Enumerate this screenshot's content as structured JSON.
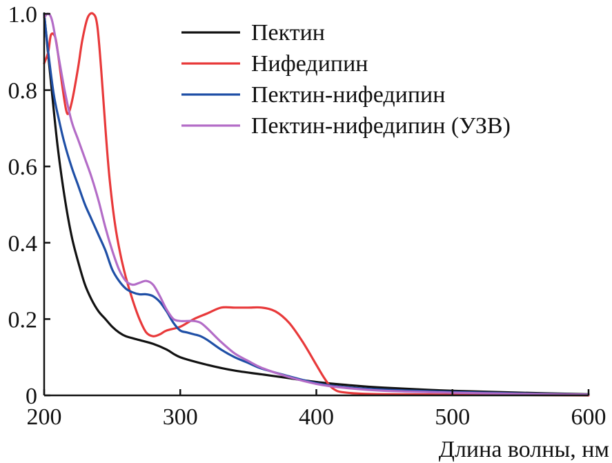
{
  "chart_data": {
    "type": "line",
    "title": "",
    "xlabel": "Длина волны, нм",
    "ylabel": "",
    "xlim": [
      200,
      600
    ],
    "ylim": [
      0,
      1.0
    ],
    "x_ticks": [
      200,
      300,
      400,
      500,
      600
    ],
    "x_tick_labels": [
      "200",
      "300",
      "400",
      "500",
      "600"
    ],
    "y_ticks": [
      0,
      0.2,
      0.4,
      0.6,
      0.8,
      1.0
    ],
    "y_tick_labels": [
      "0",
      "0.2",
      "0.4",
      "0.6",
      "0.8",
      "1.0"
    ],
    "grid": false,
    "legend_position": "top-right",
    "series": [
      {
        "name": "Пектин",
        "color": "#111111",
        "points": [
          [
            200,
            1.0
          ],
          [
            205,
            0.82
          ],
          [
            210,
            0.65
          ],
          [
            215,
            0.52
          ],
          [
            220,
            0.42
          ],
          [
            225,
            0.35
          ],
          [
            230,
            0.29
          ],
          [
            235,
            0.25
          ],
          [
            240,
            0.22
          ],
          [
            245,
            0.2
          ],
          [
            250,
            0.18
          ],
          [
            255,
            0.165
          ],
          [
            260,
            0.155
          ],
          [
            270,
            0.145
          ],
          [
            280,
            0.135
          ],
          [
            290,
            0.12
          ],
          [
            300,
            0.1
          ],
          [
            320,
            0.08
          ],
          [
            340,
            0.065
          ],
          [
            360,
            0.055
          ],
          [
            380,
            0.045
          ],
          [
            400,
            0.035
          ],
          [
            420,
            0.028
          ],
          [
            450,
            0.02
          ],
          [
            500,
            0.012
          ],
          [
            550,
            0.007
          ],
          [
            600,
            0.003
          ]
        ]
      },
      {
        "name": "Нифедипин",
        "color": "#e8393a",
        "points": [
          [
            200,
            0.87
          ],
          [
            203,
            0.9
          ],
          [
            205,
            0.945
          ],
          [
            208,
            0.94
          ],
          [
            210,
            0.9
          ],
          [
            213,
            0.82
          ],
          [
            216,
            0.75
          ],
          [
            218,
            0.74
          ],
          [
            221,
            0.78
          ],
          [
            225,
            0.86
          ],
          [
            228,
            0.93
          ],
          [
            232,
            0.99
          ],
          [
            236,
            1.0
          ],
          [
            239,
            0.97
          ],
          [
            242,
            0.85
          ],
          [
            245,
            0.7
          ],
          [
            248,
            0.57
          ],
          [
            252,
            0.45
          ],
          [
            256,
            0.37
          ],
          [
            260,
            0.31
          ],
          [
            265,
            0.25
          ],
          [
            270,
            0.2
          ],
          [
            275,
            0.165
          ],
          [
            280,
            0.155
          ],
          [
            285,
            0.16
          ],
          [
            290,
            0.17
          ],
          [
            300,
            0.18
          ],
          [
            310,
            0.2
          ],
          [
            320,
            0.215
          ],
          [
            330,
            0.23
          ],
          [
            340,
            0.23
          ],
          [
            350,
            0.23
          ],
          [
            360,
            0.23
          ],
          [
            370,
            0.22
          ],
          [
            380,
            0.19
          ],
          [
            390,
            0.14
          ],
          [
            400,
            0.08
          ],
          [
            405,
            0.05
          ],
          [
            410,
            0.025
          ],
          [
            415,
            0.012
          ],
          [
            420,
            0.008
          ],
          [
            430,
            0.005
          ],
          [
            450,
            0.003
          ],
          [
            500,
            0.002
          ],
          [
            550,
            0.001
          ],
          [
            600,
            0.0
          ]
        ]
      },
      {
        "name": "Пектин-нифедипин",
        "color": "#1f4fa6",
        "points": [
          [
            200,
            1.0
          ],
          [
            203,
            0.9
          ],
          [
            207,
            0.79
          ],
          [
            211,
            0.72
          ],
          [
            215,
            0.66
          ],
          [
            220,
            0.6
          ],
          [
            225,
            0.55
          ],
          [
            230,
            0.5
          ],
          [
            235,
            0.46
          ],
          [
            240,
            0.42
          ],
          [
            245,
            0.38
          ],
          [
            250,
            0.33
          ],
          [
            255,
            0.3
          ],
          [
            260,
            0.28
          ],
          [
            265,
            0.27
          ],
          [
            270,
            0.265
          ],
          [
            275,
            0.265
          ],
          [
            280,
            0.26
          ],
          [
            285,
            0.245
          ],
          [
            290,
            0.22
          ],
          [
            295,
            0.19
          ],
          [
            300,
            0.17
          ],
          [
            305,
            0.165
          ],
          [
            310,
            0.16
          ],
          [
            315,
            0.155
          ],
          [
            320,
            0.145
          ],
          [
            330,
            0.12
          ],
          [
            340,
            0.1
          ],
          [
            350,
            0.085
          ],
          [
            360,
            0.07
          ],
          [
            380,
            0.05
          ],
          [
            400,
            0.032
          ],
          [
            420,
            0.022
          ],
          [
            450,
            0.015
          ],
          [
            500,
            0.009
          ],
          [
            550,
            0.005
          ],
          [
            600,
            0.002
          ]
        ]
      },
      {
        "name": "Пектин-нифедипин (УЗВ)",
        "color": "#b36cc7",
        "points": [
          [
            200,
            0.99
          ],
          [
            203,
            1.0
          ],
          [
            206,
            0.98
          ],
          [
            210,
            0.9
          ],
          [
            215,
            0.8
          ],
          [
            220,
            0.72
          ],
          [
            225,
            0.67
          ],
          [
            230,
            0.62
          ],
          [
            235,
            0.57
          ],
          [
            240,
            0.51
          ],
          [
            245,
            0.44
          ],
          [
            250,
            0.38
          ],
          [
            255,
            0.33
          ],
          [
            260,
            0.3
          ],
          [
            265,
            0.29
          ],
          [
            270,
            0.295
          ],
          [
            275,
            0.3
          ],
          [
            280,
            0.29
          ],
          [
            285,
            0.26
          ],
          [
            290,
            0.225
          ],
          [
            295,
            0.2
          ],
          [
            300,
            0.195
          ],
          [
            305,
            0.195
          ],
          [
            310,
            0.195
          ],
          [
            315,
            0.19
          ],
          [
            320,
            0.175
          ],
          [
            330,
            0.14
          ],
          [
            340,
            0.11
          ],
          [
            350,
            0.09
          ],
          [
            360,
            0.072
          ],
          [
            380,
            0.048
          ],
          [
            400,
            0.03
          ],
          [
            420,
            0.02
          ],
          [
            450,
            0.012
          ],
          [
            500,
            0.007
          ],
          [
            550,
            0.004
          ],
          [
            600,
            0.002
          ]
        ]
      }
    ]
  }
}
